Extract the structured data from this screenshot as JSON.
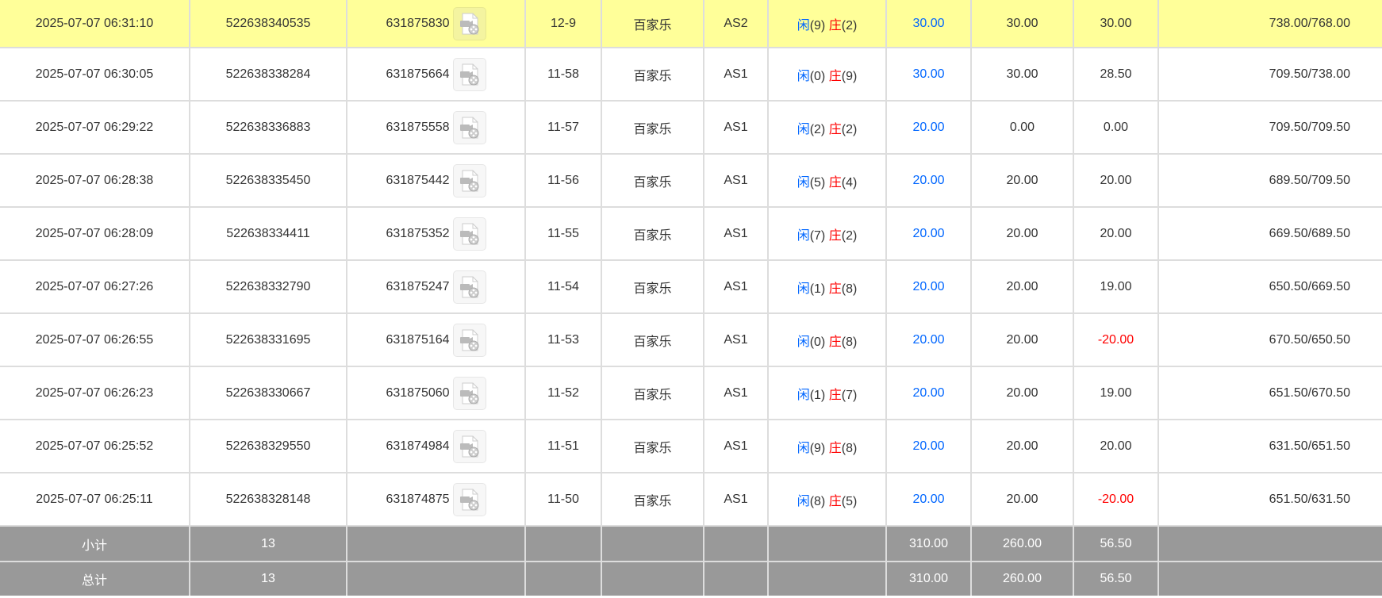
{
  "colors": {
    "highlight": "#ffff99",
    "summary_bg": "#999999",
    "player": "#0066ff",
    "banker": "#ff0000",
    "negative": "#ff0000",
    "valid_bet": "#0066ff"
  },
  "rows": [
    {
      "time": "2025-07-07 06:31:10",
      "order_id": "522638340535",
      "game_id": "631875830",
      "icon": "video-file-icon",
      "round": "12-9",
      "game": "百家乐",
      "table": "AS2",
      "player_label": "闲",
      "player": "(9)",
      "banker_label": "庄",
      "banker": "(2)",
      "bet": "30.00",
      "valid": "30.00",
      "payout": "30.00",
      "balance": "738.00/768.00",
      "highlighted": true
    },
    {
      "time": "2025-07-07 06:30:05",
      "order_id": "522638338284",
      "game_id": "631875664",
      "icon": "video-file-icon",
      "round": "11-58",
      "game": "百家乐",
      "table": "AS1",
      "player_label": "闲",
      "player": "(0)",
      "banker_label": "庄",
      "banker": "(9)",
      "bet": "30.00",
      "valid": "30.00",
      "payout": "28.50",
      "balance": "709.50/738.00"
    },
    {
      "time": "2025-07-07 06:29:22",
      "order_id": "522638336883",
      "game_id": "631875558",
      "icon": "video-file-icon",
      "round": "11-57",
      "game": "百家乐",
      "table": "AS1",
      "player_label": "闲",
      "player": "(2)",
      "banker_label": "庄",
      "banker": "(2)",
      "bet": "20.00",
      "valid": "0.00",
      "payout": "0.00",
      "balance": "709.50/709.50"
    },
    {
      "time": "2025-07-07 06:28:38",
      "order_id": "522638335450",
      "game_id": "631875442",
      "icon": "video-file-icon",
      "round": "11-56",
      "game": "百家乐",
      "table": "AS1",
      "player_label": "闲",
      "player": "(5)",
      "banker_label": "庄",
      "banker": "(4)",
      "bet": "20.00",
      "valid": "20.00",
      "payout": "20.00",
      "balance": "689.50/709.50"
    },
    {
      "time": "2025-07-07 06:28:09",
      "order_id": "522638334411",
      "game_id": "631875352",
      "icon": "video-file-icon",
      "round": "11-55",
      "game": "百家乐",
      "table": "AS1",
      "player_label": "闲",
      "player": "(7)",
      "banker_label": "庄",
      "banker": "(2)",
      "bet": "20.00",
      "valid": "20.00",
      "payout": "20.00",
      "balance": "669.50/689.50"
    },
    {
      "time": "2025-07-07 06:27:26",
      "order_id": "522638332790",
      "game_id": "631875247",
      "icon": "video-file-icon",
      "round": "11-54",
      "game": "百家乐",
      "table": "AS1",
      "player_label": "闲",
      "player": "(1)",
      "banker_label": "庄",
      "banker": "(8)",
      "bet": "20.00",
      "valid": "20.00",
      "payout": "19.00",
      "balance": "650.50/669.50"
    },
    {
      "time": "2025-07-07 06:26:55",
      "order_id": "522638331695",
      "game_id": "631875164",
      "icon": "video-file-icon",
      "round": "11-53",
      "game": "百家乐",
      "table": "AS1",
      "player_label": "闲",
      "player": "(0)",
      "banker_label": "庄",
      "banker": "(8)",
      "bet": "20.00",
      "valid": "20.00",
      "payout": "-20.00",
      "balance": "670.50/650.50"
    },
    {
      "time": "2025-07-07 06:26:23",
      "order_id": "522638330667",
      "game_id": "631875060",
      "icon": "video-file-icon",
      "round": "11-52",
      "game": "百家乐",
      "table": "AS1",
      "player_label": "闲",
      "player": "(1)",
      "banker_label": "庄",
      "banker": "(7)",
      "bet": "20.00",
      "valid": "20.00",
      "payout": "19.00",
      "balance": "651.50/670.50"
    },
    {
      "time": "2025-07-07 06:25:52",
      "order_id": "522638329550",
      "game_id": "631874984",
      "icon": "video-file-icon",
      "round": "11-51",
      "game": "百家乐",
      "table": "AS1",
      "player_label": "闲",
      "player": "(9)",
      "banker_label": "庄",
      "banker": "(8)",
      "bet": "20.00",
      "valid": "20.00",
      "payout": "20.00",
      "balance": "631.50/651.50"
    },
    {
      "time": "2025-07-07 06:25:11",
      "order_id": "522638328148",
      "game_id": "631874875",
      "icon": "video-file-icon",
      "round": "11-50",
      "game": "百家乐",
      "table": "AS1",
      "player_label": "闲",
      "player": "(8)",
      "banker_label": "庄",
      "banker": "(5)",
      "bet": "20.00",
      "valid": "20.00",
      "payout": "-20.00",
      "balance": "651.50/631.50"
    }
  ],
  "summary": [
    {
      "label": "小计",
      "count": "13",
      "bet": "310.00",
      "valid": "260.00",
      "payout": "56.50"
    },
    {
      "label": "总计",
      "count": "13",
      "bet": "310.00",
      "valid": "260.00",
      "payout": "56.50"
    }
  ]
}
